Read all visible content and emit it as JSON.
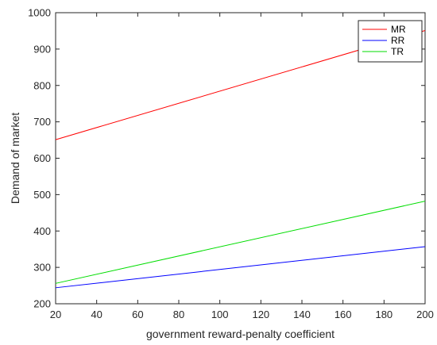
{
  "chart_data": {
    "type": "line",
    "title": "",
    "xlabel": "government reward-penalty coefficient",
    "ylabel": "Demand of market",
    "xlim": [
      20,
      200
    ],
    "ylim": [
      200,
      1000
    ],
    "x_ticks": [
      20,
      40,
      60,
      80,
      100,
      120,
      140,
      160,
      180,
      200
    ],
    "y_ticks": [
      200,
      300,
      400,
      500,
      600,
      700,
      800,
      900,
      1000
    ],
    "x": [
      20,
      200
    ],
    "grid": false,
    "legend_position": "top-right",
    "series": [
      {
        "name": "MR",
        "color": "#ff0000",
        "values": [
          651,
          951
        ]
      },
      {
        "name": "RR",
        "color": "#0000ff",
        "values": [
          244,
          357
        ]
      },
      {
        "name": "TR",
        "color": "#00dd00",
        "values": [
          256,
          482
        ]
      }
    ]
  }
}
